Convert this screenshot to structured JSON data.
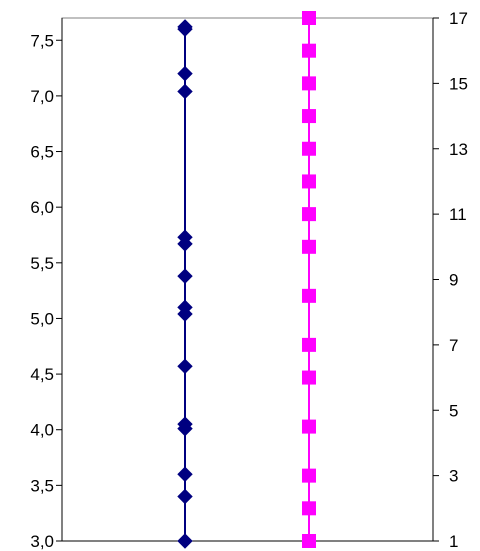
{
  "chart_data": {
    "type": "scatter",
    "grid": false,
    "legend": "none",
    "left_axis": {
      "min": 3.0,
      "max": 7.7,
      "ticks": [
        {
          "value": 3.0,
          "label": "3,0"
        },
        {
          "value": 3.5,
          "label": "3,5"
        },
        {
          "value": 4.0,
          "label": "4,0"
        },
        {
          "value": 4.5,
          "label": "4,5"
        },
        {
          "value": 5.0,
          "label": "5,0"
        },
        {
          "value": 5.5,
          "label": "5,5"
        },
        {
          "value": 6.0,
          "label": "6,0"
        },
        {
          "value": 6.5,
          "label": "6,5"
        },
        {
          "value": 7.0,
          "label": "7,0"
        },
        {
          "value": 7.5,
          "label": "7,5"
        }
      ]
    },
    "right_axis": {
      "min": 1,
      "max": 17,
      "ticks": [
        {
          "value": 1,
          "label": "1"
        },
        {
          "value": 3,
          "label": "3"
        },
        {
          "value": 5,
          "label": "5"
        },
        {
          "value": 7,
          "label": "7"
        },
        {
          "value": 9,
          "label": "9"
        },
        {
          "value": 11,
          "label": "11"
        },
        {
          "value": 13,
          "label": "13"
        },
        {
          "value": 15,
          "label": "15"
        },
        {
          "value": 17,
          "label": "17"
        }
      ]
    },
    "series": [
      {
        "axis": "left",
        "x": 1,
        "marker": "diamond",
        "color": "#000080",
        "values": [
          3.0,
          3.4,
          3.6,
          4.01,
          4.05,
          4.57,
          5.04,
          5.1,
          5.38,
          5.67,
          5.73,
          7.04,
          7.2,
          7.6,
          7.62
        ]
      },
      {
        "axis": "right",
        "x": 2,
        "marker": "square",
        "color": "#ff00ff",
        "values": [
          1,
          2,
          3,
          4.5,
          6,
          7,
          8.5,
          10,
          11,
          12,
          13,
          14,
          15,
          16,
          17
        ]
      }
    ]
  }
}
